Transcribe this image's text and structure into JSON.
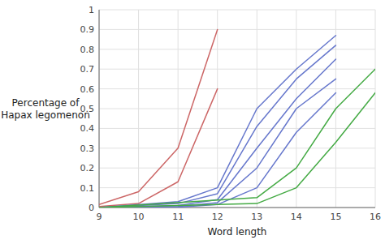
{
  "chart_data": {
    "type": "line",
    "xlabel": "Word length",
    "ylabel": "Percentage of\nHapax legomenon",
    "xlim": [
      9,
      16
    ],
    "ylim": [
      0,
      1
    ],
    "xticks": [
      9,
      10,
      11,
      12,
      13,
      14,
      15,
      16
    ],
    "yticks": [
      0,
      0.1,
      0.2,
      0.3,
      0.4,
      0.5,
      0.6,
      0.7,
      0.8,
      0.9,
      1
    ],
    "grid": true,
    "series": [
      {
        "color": "#cc6666",
        "x": [
          9,
          10,
          11,
          12
        ],
        "values": [
          0.015,
          0.08,
          0.3,
          0.9
        ]
      },
      {
        "color": "#cc6666",
        "x": [
          9,
          10,
          11,
          12
        ],
        "values": [
          0.005,
          0.02,
          0.13,
          0.6
        ]
      },
      {
        "color": "#6677cc",
        "x": [
          9,
          11,
          12,
          13,
          14,
          15
        ],
        "values": [
          0.0,
          0.03,
          0.1,
          0.5,
          0.7,
          0.87
        ]
      },
      {
        "color": "#6677cc",
        "x": [
          9,
          11,
          12,
          13,
          14,
          15
        ],
        "values": [
          0.0,
          0.02,
          0.07,
          0.41,
          0.65,
          0.82
        ]
      },
      {
        "color": "#6677cc",
        "x": [
          9,
          11,
          12,
          13,
          14,
          15
        ],
        "values": [
          0.0,
          0.01,
          0.04,
          0.3,
          0.55,
          0.75
        ]
      },
      {
        "color": "#6677cc",
        "x": [
          9,
          11,
          12,
          13,
          14,
          15
        ],
        "values": [
          0.0,
          0.005,
          0.025,
          0.2,
          0.5,
          0.65
        ]
      },
      {
        "color": "#6677cc",
        "x": [
          9,
          11,
          12,
          13,
          14,
          15
        ],
        "values": [
          0.0,
          0.002,
          0.015,
          0.1,
          0.38,
          0.58
        ]
      },
      {
        "color": "#44aa44",
        "x": [
          9,
          13,
          14,
          15,
          16
        ],
        "values": [
          0.0,
          0.05,
          0.2,
          0.5,
          0.7
        ]
      },
      {
        "color": "#44aa44",
        "x": [
          9,
          13,
          14,
          15,
          16
        ],
        "values": [
          0.0,
          0.02,
          0.1,
          0.33,
          0.58
        ]
      }
    ]
  }
}
